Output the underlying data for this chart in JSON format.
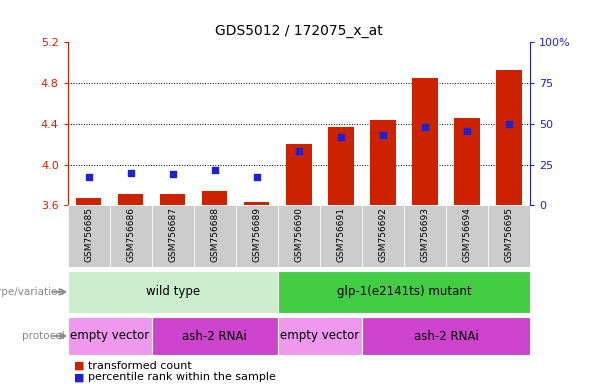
{
  "title": "GDS5012 / 172075_x_at",
  "samples": [
    "GSM756685",
    "GSM756686",
    "GSM756687",
    "GSM756688",
    "GSM756689",
    "GSM756690",
    "GSM756691",
    "GSM756692",
    "GSM756693",
    "GSM756694",
    "GSM756695"
  ],
  "bar_values": [
    3.67,
    3.71,
    3.71,
    3.74,
    3.63,
    4.2,
    4.37,
    4.44,
    4.85,
    4.46,
    4.93
  ],
  "blue_dot_values": [
    3.875,
    3.92,
    3.905,
    3.945,
    3.875,
    4.13,
    4.275,
    4.295,
    4.37,
    4.325,
    4.395
  ],
  "bar_bottom": 3.6,
  "ylim_left": [
    3.6,
    5.2
  ],
  "ylim_right": [
    0,
    100
  ],
  "yticks_left": [
    3.6,
    4.0,
    4.4,
    4.8,
    5.2
  ],
  "yticks_right": [
    0,
    25,
    50,
    75,
    100
  ],
  "bar_color": "#cc2200",
  "dot_color": "#2222cc",
  "bg_color": "#ffffff",
  "left_axis_color": "#cc2200",
  "right_axis_color": "#2222cc",
  "genotype_groups": [
    {
      "label": "wild type",
      "start": 0,
      "end": 5,
      "color": "#cceecc"
    },
    {
      "label": "glp-1(e2141ts) mutant",
      "start": 5,
      "end": 11,
      "color": "#44cc44"
    }
  ],
  "protocol_groups": [
    {
      "label": "empty vector",
      "start": 0,
      "end": 2,
      "color": "#ee99ee"
    },
    {
      "label": "ash-2 RNAi",
      "start": 2,
      "end": 5,
      "color": "#cc44cc"
    },
    {
      "label": "empty vector",
      "start": 5,
      "end": 7,
      "color": "#ee99ee"
    },
    {
      "label": "ash-2 RNAi",
      "start": 7,
      "end": 11,
      "color": "#cc44cc"
    }
  ],
  "legend_items": [
    {
      "label": "transformed count",
      "color": "#cc2200"
    },
    {
      "label": "percentile rank within the sample",
      "color": "#2222cc"
    }
  ],
  "bar_width": 0.6,
  "dot_size": 18,
  "xticklabel_bg": "#cccccc"
}
